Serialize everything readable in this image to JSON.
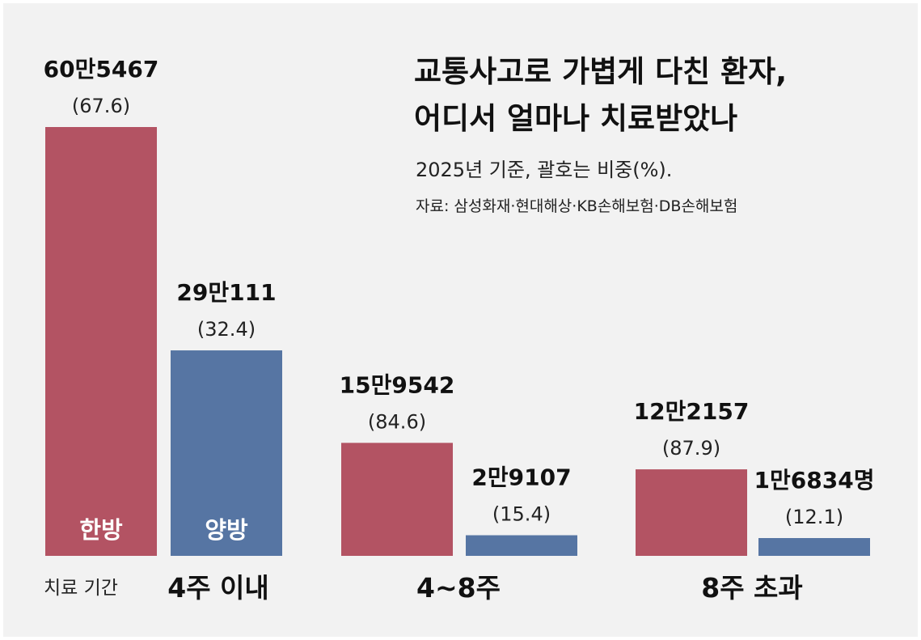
{
  "chart_data": {
    "type": "bar",
    "title_lines": [
      "교통사고로 가볍게 다친 환자,",
      "어디서 얼마나 치료받았나"
    ],
    "subtitle": "2025년 기준, 괄호는 비중(%).",
    "source": "자료: 삼성화재·현대해상·KB손해보험·DB손해보험",
    "xlabel": "치료 기간",
    "categories": [
      "4주 이내",
      "4~8주",
      "8주 초과"
    ],
    "series": [
      {
        "name": "한방",
        "color": "#b35363",
        "values": [
          605467,
          159542,
          122157
        ],
        "value_labels": [
          "60만5467",
          "15만9542",
          "12만2157"
        ],
        "share_labels": [
          "(67.6)",
          "(84.6)",
          "(87.9)"
        ]
      },
      {
        "name": "양방",
        "color": "#5675a3",
        "values": [
          290111,
          29107,
          16834
        ],
        "value_labels": [
          "29만111",
          "2만9107",
          "1만6834명"
        ],
        "share_labels": [
          "(32.4)",
          "(15.4)",
          "(12.1)"
        ]
      }
    ],
    "ylim": [
      0,
      605467
    ],
    "grid": false
  }
}
